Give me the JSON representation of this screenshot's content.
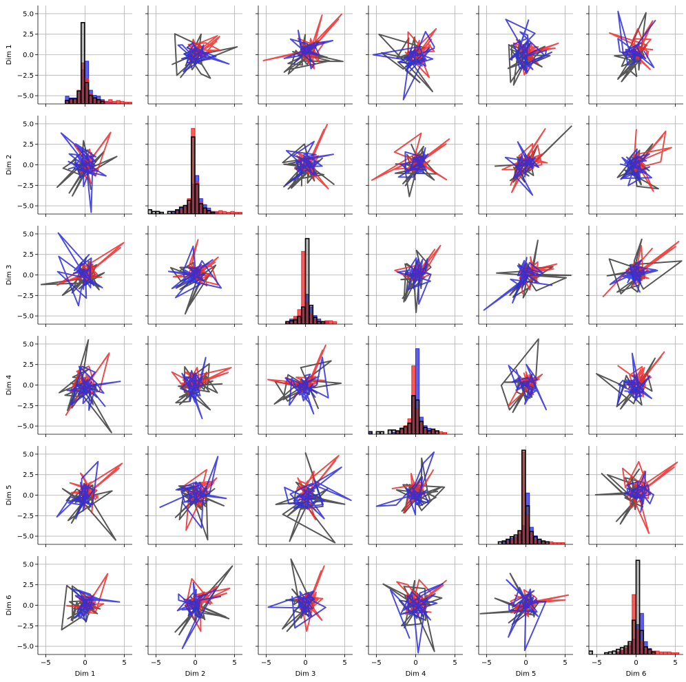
{
  "chart_data": {
    "type": "pairplot",
    "variables": [
      "Dim 1",
      "Dim 2",
      "Dim 3",
      "Dim 4",
      "Dim 5",
      "Dim 6"
    ],
    "xlim": [
      -6,
      6
    ],
    "ylim": [
      -6,
      6
    ],
    "xticks": [
      -5,
      0,
      5
    ],
    "xtick_labels": [
      "−5",
      "0",
      "5"
    ],
    "yticks": [
      -5.0,
      -2.5,
      0.0,
      2.5,
      5.0
    ],
    "ytick_labels": [
      "−5.0",
      "−2.5",
      "0.0",
      "2.5",
      "5.0"
    ],
    "grid": true,
    "diagonal": "histogram",
    "off_diagonal": "line",
    "series": [
      {
        "name": "blue",
        "color": "#2b2bdd"
      },
      {
        "name": "red",
        "color": "#ee2a2a"
      },
      {
        "name": "black",
        "color": "#3a3a3a"
      }
    ],
    "histogram_bins": [
      -5.75,
      -5.25,
      -4.75,
      -4.25,
      -3.75,
      -3.25,
      -2.75,
      -2.25,
      -1.75,
      -1.25,
      -0.75,
      -0.25,
      0.25,
      0.75,
      1.25,
      1.75,
      2.25,
      2.75,
      3.25,
      3.75,
      4.25,
      4.75,
      5.25,
      5.75
    ],
    "histograms": [
      {
        "black": [
          0,
          0,
          0,
          0,
          0,
          0,
          0,
          0.4,
          0.6,
          0.6,
          1.5,
          9.5,
          2.5,
          1.0,
          0.7,
          0.5,
          0.3,
          0,
          0,
          0,
          0,
          0,
          0,
          0
        ],
        "blue": [
          0,
          0,
          0,
          0,
          0,
          0,
          0,
          0.9,
          0.7,
          0.7,
          1.3,
          4.0,
          5.0,
          1.6,
          1.0,
          0.9,
          0.5,
          0.3,
          0.2,
          0.1,
          0,
          0,
          0,
          0
        ],
        "red": [
          0,
          0,
          0,
          0,
          0,
          0,
          0,
          0.3,
          0.5,
          0.6,
          1.6,
          4.8,
          3.0,
          1.2,
          0.7,
          0.5,
          0.4,
          0.3,
          0.5,
          0.3,
          0.4,
          0.3,
          0.2,
          0.2
        ]
      },
      {
        "black": [
          0.5,
          0.3,
          0.3,
          0.2,
          0,
          0.3,
          0.3,
          0.5,
          0.8,
          1.0,
          1.6,
          9.0,
          3.5,
          1.2,
          0.7,
          0.4,
          0.2,
          0,
          0,
          0,
          0,
          0,
          0,
          0
        ],
        "blue": [
          0,
          0,
          0,
          0,
          0,
          0,
          0.3,
          0.4,
          0.7,
          0.9,
          1.2,
          3.5,
          4.5,
          1.8,
          1.1,
          0.7,
          0.3,
          0.2,
          0,
          0,
          0,
          0,
          0,
          0
        ],
        "red": [
          0,
          0,
          0,
          0,
          0,
          0,
          0,
          0.3,
          0.5,
          0.9,
          1.8,
          10.0,
          3.8,
          1.4,
          0.7,
          0.4,
          0.3,
          0.3,
          0.4,
          0.3,
          0.2,
          0.3,
          0.2,
          0.2
        ]
      },
      {
        "black": [
          0,
          0,
          0,
          0,
          0,
          0,
          0,
          0.3,
          0.4,
          0.5,
          0.9,
          2.0,
          10.0,
          2.2,
          0.8,
          0.3,
          0.3,
          0,
          0,
          0,
          0,
          0,
          0,
          0
        ],
        "blue": [
          0,
          0,
          0,
          0,
          0,
          0,
          0,
          0.3,
          0.6,
          0.7,
          1.0,
          1.8,
          3.5,
          2.0,
          1.0,
          0.6,
          0.3,
          0.3,
          0,
          0,
          0,
          0,
          0,
          0
        ],
        "red": [
          0,
          0,
          0,
          0,
          0,
          0,
          0,
          0.3,
          0.4,
          0.9,
          1.7,
          8.5,
          2.5,
          1.2,
          0.6,
          0.3,
          0.3,
          0.4,
          0.4,
          0.3,
          0,
          0,
          0,
          0
        ]
      },
      {
        "black": [
          0.3,
          0,
          0.3,
          0.3,
          0,
          0.5,
          0.5,
          0.4,
          0.7,
          0.9,
          1.3,
          4.5,
          4.0,
          1.5,
          0.8,
          0.4,
          0.6,
          0.4,
          0,
          0,
          0,
          0,
          0,
          0
        ],
        "blue": [
          0.3,
          0,
          0,
          0,
          0,
          0,
          0.2,
          0.3,
          0.6,
          0.9,
          1.2,
          4.5,
          10.0,
          2.0,
          1.0,
          0.7,
          0.5,
          0,
          0,
          0,
          0,
          0,
          0,
          0
        ],
        "red": [
          0,
          0,
          0,
          0,
          0,
          0,
          0,
          0.3,
          0.5,
          1.0,
          1.8,
          8.0,
          3.0,
          1.5,
          0.6,
          0.4,
          0.5,
          0.3,
          0.3,
          0.2,
          0,
          0,
          0,
          0
        ]
      },
      {
        "black": [
          0,
          0,
          0,
          0,
          0,
          0.3,
          0.4,
          0.6,
          0.9,
          1.1,
          1.6,
          11.0,
          4.5,
          1.5,
          0.9,
          0.6,
          0.4,
          0.3,
          0,
          0,
          0,
          0,
          0,
          0
        ],
        "blue": [
          0,
          0,
          0,
          0,
          0,
          0,
          0.3,
          0.5,
          0.7,
          0.9,
          1.2,
          2.2,
          6.0,
          2.0,
          1.0,
          0.6,
          0.3,
          0,
          0,
          0,
          0,
          0,
          0,
          0
        ],
        "red": [
          0,
          0,
          0,
          0,
          0,
          0,
          0,
          0.3,
          0.5,
          0.9,
          1.6,
          10.8,
          3.5,
          1.3,
          0.6,
          0.3,
          0.3,
          0.3,
          0.3,
          0.2,
          0.2,
          0.2,
          0,
          0
        ]
      },
      {
        "black": [
          0.4,
          0,
          0,
          0,
          0.2,
          0.3,
          0.4,
          0.6,
          0.8,
          1.0,
          1.5,
          4.0,
          11.0,
          2.8,
          0.9,
          0.6,
          0.3,
          0,
          0,
          0,
          0,
          0,
          0,
          0
        ],
        "blue": [
          0,
          0,
          0,
          0,
          0,
          0,
          0,
          0.3,
          0.5,
          0.8,
          1.0,
          1.8,
          3.5,
          4.8,
          1.5,
          0.7,
          0.3,
          0,
          0,
          0,
          0,
          0,
          0,
          0
        ],
        "red": [
          0,
          0,
          0,
          0,
          0,
          0,
          0,
          0.3,
          0.5,
          0.8,
          1.3,
          7.0,
          3.0,
          1.5,
          0.8,
          0.5,
          0.4,
          0.4,
          0.3,
          0.3,
          0.3,
          0.2,
          0.2,
          0
        ]
      }
    ]
  }
}
